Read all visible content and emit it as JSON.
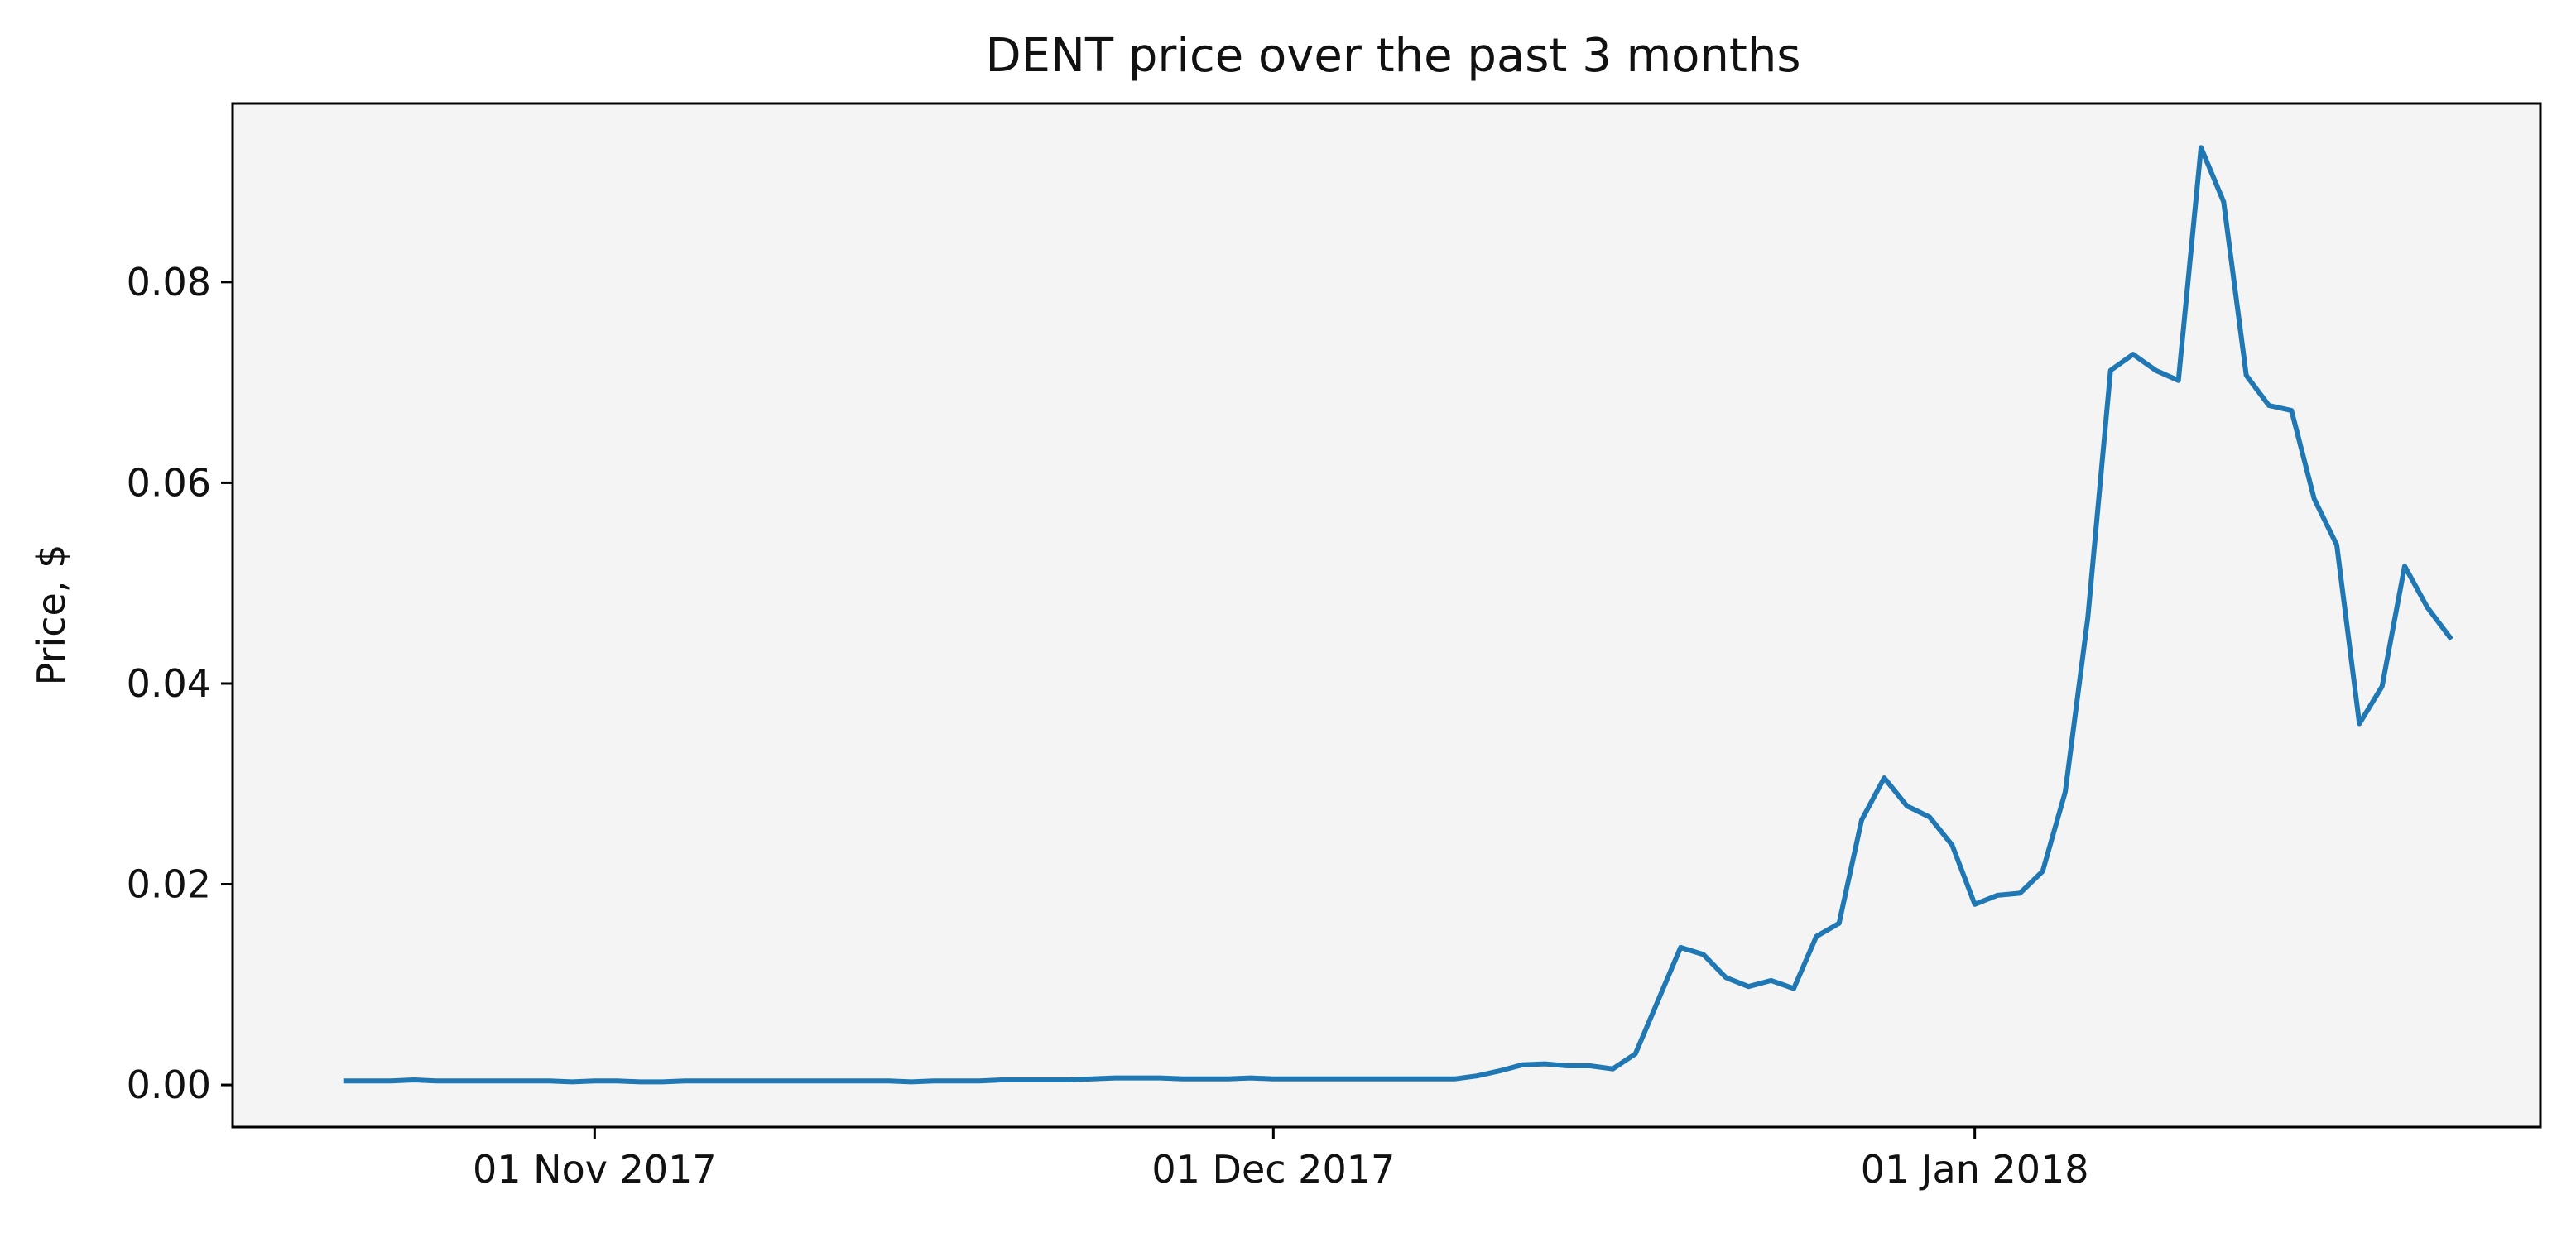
{
  "chart_data": {
    "type": "line",
    "title": "DENT price over the past 3 months",
    "xlabel": "",
    "ylabel": "Price, $",
    "x_start": "2017-10-21",
    "x_step_days": 1,
    "xlim": [
      "2017-10-16",
      "2018-01-26"
    ],
    "ylim": [
      -0.0042,
      0.0978
    ],
    "x_ticks": [
      {
        "date": "2017-11-01",
        "label": "01 Nov 2017"
      },
      {
        "date": "2017-12-01",
        "label": "01 Dec 2017"
      },
      {
        "date": "2018-01-01",
        "label": "01 Jan 2018"
      }
    ],
    "y_ticks": [
      {
        "value": 0.0,
        "label": "0.00"
      },
      {
        "value": 0.02,
        "label": "0.02"
      },
      {
        "value": 0.04,
        "label": "0.04"
      },
      {
        "value": 0.06,
        "label": "0.06"
      },
      {
        "value": 0.08,
        "label": "0.08"
      }
    ],
    "grid": false,
    "colors": {
      "line": "#1f77b4",
      "plot_bg": "#f4f4f4",
      "axis": "#000000"
    },
    "series": [
      {
        "values": [
          0.0004,
          0.0004,
          0.0004,
          0.0005,
          0.0004,
          0.0004,
          0.0004,
          0.0004,
          0.0004,
          0.0004,
          0.0003,
          0.0004,
          0.0004,
          0.0003,
          0.0003,
          0.0004,
          0.0004,
          0.0004,
          0.0004,
          0.0004,
          0.0004,
          0.0004,
          0.0004,
          0.0004,
          0.0004,
          0.0003,
          0.0004,
          0.0004,
          0.0004,
          0.0005,
          0.0005,
          0.0005,
          0.0005,
          0.0006,
          0.0007,
          0.0007,
          0.0007,
          0.0006,
          0.0006,
          0.0006,
          0.0007,
          0.0006,
          0.0006,
          0.0006,
          0.0006,
          0.0006,
          0.0006,
          0.0006,
          0.0006,
          0.0006,
          0.0009,
          0.0014,
          0.002,
          0.0021,
          0.0019,
          0.0019,
          0.0016,
          0.0031,
          0.0084,
          0.0137,
          0.013,
          0.0107,
          0.0098,
          0.0104,
          0.0096,
          0.0148,
          0.0161,
          0.0264,
          0.0306,
          0.0278,
          0.0267,
          0.0239,
          0.018,
          0.0189,
          0.0191,
          0.0213,
          0.0292,
          0.0466,
          0.0712,
          0.0728,
          0.0712,
          0.0702,
          0.0934,
          0.088,
          0.0707,
          0.0677,
          0.0672,
          0.0584,
          0.0538,
          0.036,
          0.0397,
          0.0517,
          0.0476,
          0.0446
        ]
      }
    ]
  }
}
